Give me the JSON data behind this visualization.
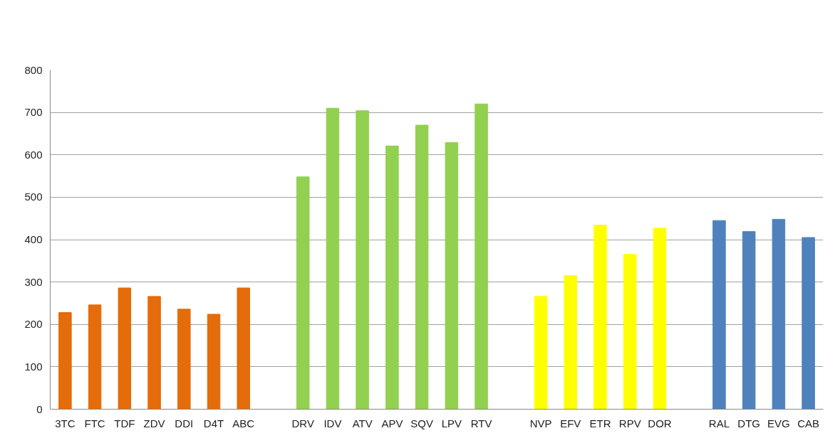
{
  "chart_data": {
    "type": "bar",
    "categories": [
      "3TC",
      "FTC",
      "TDF",
      "ZDV",
      "DDI",
      "D4T",
      "ABC",
      null,
      "DRV",
      "IDV",
      "ATV",
      "APV",
      "SQV",
      "LPV",
      "RTV",
      null,
      "NVP",
      "EFV",
      "ETR",
      "RPV",
      "DOR",
      null,
      "RAL",
      "DTG",
      "EVG",
      "CAB"
    ],
    "values": [
      228,
      246,
      286,
      266,
      236,
      224,
      286,
      null,
      548,
      710,
      704,
      621,
      670,
      629,
      720,
      null,
      266,
      315,
      434,
      365,
      427,
      null,
      445,
      419,
      448,
      405
    ],
    "colors": [
      "#e46c0a",
      "#e46c0a",
      "#e46c0a",
      "#e46c0a",
      "#e46c0a",
      "#e46c0a",
      "#e46c0a",
      null,
      "#92d050",
      "#92d050",
      "#92d050",
      "#92d050",
      "#92d050",
      "#92d050",
      "#92d050",
      null,
      "#ffff00",
      "#ffff00",
      "#ffff00",
      "#ffff00",
      "#ffff00",
      null,
      "#4f81bd",
      "#4f81bd",
      "#4f81bd",
      "#4f81bd"
    ],
    "ylim": [
      0,
      800
    ],
    "yticks": [
      0,
      100,
      200,
      300,
      400,
      500,
      600,
      700,
      800
    ],
    "grid": "y"
  }
}
